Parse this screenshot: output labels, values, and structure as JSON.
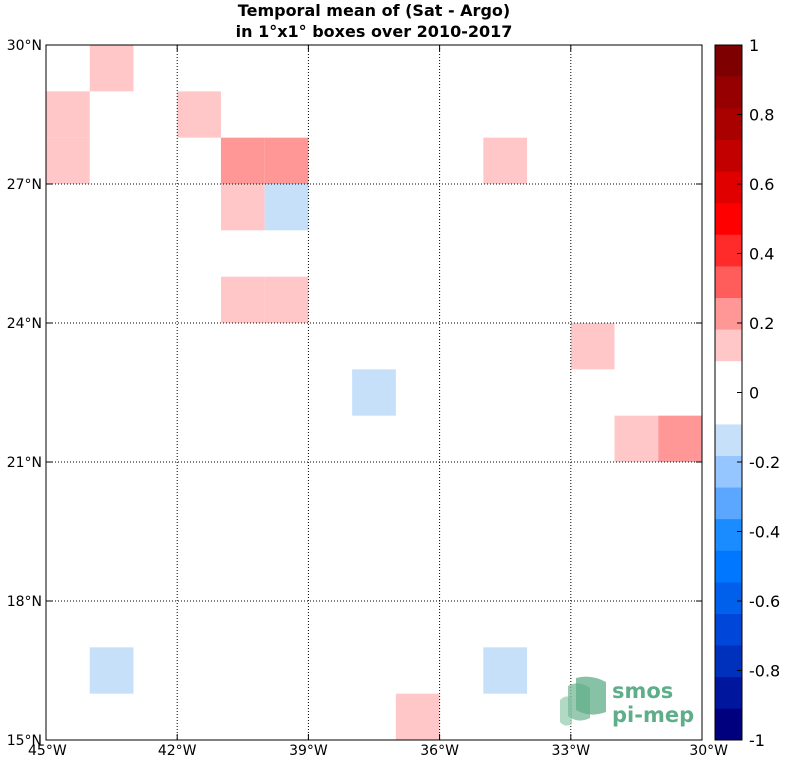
{
  "title": {
    "line1": "Temporal mean of (Sat - Argo)",
    "line2": "in 1°x1° boxes over 2010-2017"
  },
  "map": {
    "lon_range": [
      -45,
      -30
    ],
    "lat_range": [
      15,
      30
    ],
    "grid": true,
    "lon_ticks": [
      {
        "value": -45,
        "label": "45°W"
      },
      {
        "value": -42,
        "label": "42°W"
      },
      {
        "value": -39,
        "label": "39°W"
      },
      {
        "value": -36,
        "label": "36°W"
      },
      {
        "value": -33,
        "label": "33°W"
      },
      {
        "value": -30,
        "label": "30°W"
      }
    ],
    "lat_ticks": [
      {
        "value": 30,
        "label": "30°N"
      },
      {
        "value": 27,
        "label": "27°N"
      },
      {
        "value": 24,
        "label": "24°N"
      },
      {
        "value": 21,
        "label": "21°N"
      },
      {
        "value": 18,
        "label": "18°N"
      },
      {
        "value": 15,
        "label": "15°N"
      }
    ],
    "boxes": [
      {
        "lon": -44,
        "lat": 29,
        "value": 0.15
      },
      {
        "lon": -45,
        "lat": 28,
        "value": 0.15
      },
      {
        "lon": -45,
        "lat": 27,
        "value": 0.15
      },
      {
        "lon": -42,
        "lat": 28,
        "value": 0.15
      },
      {
        "lon": -41,
        "lat": 27,
        "value": 0.25
      },
      {
        "lon": -40,
        "lat": 27,
        "value": 0.25
      },
      {
        "lon": -35,
        "lat": 27,
        "value": 0.15
      },
      {
        "lon": -41,
        "lat": 26,
        "value": 0.15
      },
      {
        "lon": -40,
        "lat": 26,
        "value": -0.15
      },
      {
        "lon": -41,
        "lat": 24,
        "value": 0.15
      },
      {
        "lon": -40,
        "lat": 24,
        "value": 0.15
      },
      {
        "lon": -33,
        "lat": 23,
        "value": 0.15
      },
      {
        "lon": -38,
        "lat": 22,
        "value": -0.15
      },
      {
        "lon": -32,
        "lat": 21,
        "value": 0.15
      },
      {
        "lon": -31,
        "lat": 21,
        "value": 0.25
      },
      {
        "lon": -44,
        "lat": 16,
        "value": -0.15
      },
      {
        "lon": -35,
        "lat": 16,
        "value": -0.15
      },
      {
        "lon": -37,
        "lat": 15,
        "value": 0.15
      }
    ]
  },
  "colorbar": {
    "range": [
      -1,
      1
    ],
    "colors": [
      "#00007f",
      "#00179d",
      "#0031bc",
      "#0046d8",
      "#0060eb",
      "#0077ff",
      "#1a8cff",
      "#5ba7ff",
      "#96c6ff",
      "#c6e0fa",
      "#ffffff",
      "#ffffff",
      "#ffc7c7",
      "#ff9797",
      "#ff5c5c",
      "#ff2a2a",
      "#ff0000",
      "#e00000",
      "#c30000",
      "#a90000",
      "#960000",
      "#7f0000"
    ],
    "ticks": [
      {
        "value": 1,
        "label": "1"
      },
      {
        "value": 0.8,
        "label": "0.8"
      },
      {
        "value": 0.6,
        "label": "0.6"
      },
      {
        "value": 0.4,
        "label": "0.4"
      },
      {
        "value": 0.2,
        "label": "0.2"
      },
      {
        "value": 0,
        "label": "0"
      },
      {
        "value": -0.2,
        "label": "-0.2"
      },
      {
        "value": -0.4,
        "label": "-0.4"
      },
      {
        "value": -0.6,
        "label": "-0.6"
      },
      {
        "value": -0.8,
        "label": "-0.8"
      },
      {
        "value": -1,
        "label": "-1"
      }
    ]
  },
  "logo": {
    "line1": "smos",
    "line2": "pi-mep",
    "color": "#5fae8a"
  }
}
